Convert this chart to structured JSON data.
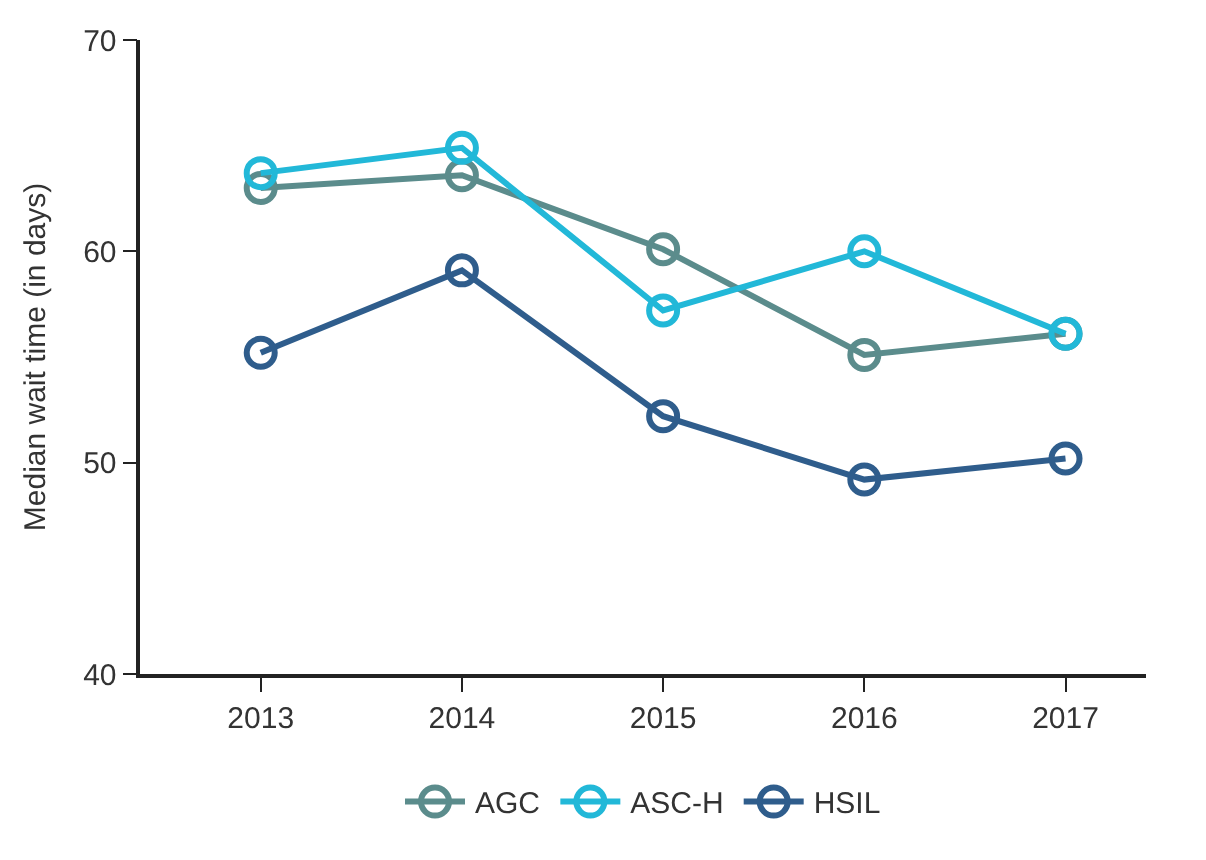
{
  "chart_data": {
    "type": "line",
    "ylabel": "Median wait time (in days)",
    "categories": [
      "2013",
      "2014",
      "2015",
      "2016",
      "2017"
    ],
    "series": [
      {
        "name": "AGC",
        "color": "#5b8c8c",
        "values": [
          63.0,
          63.6,
          60.1,
          55.1,
          56.1
        ]
      },
      {
        "name": "ASC-H",
        "color": "#22b8d8",
        "values": [
          63.7,
          64.9,
          57.2,
          60.0,
          56.1
        ]
      },
      {
        "name": "HSIL",
        "color": "#2f5d8c",
        "values": [
          55.2,
          59.1,
          52.2,
          49.2,
          50.2
        ]
      }
    ],
    "ylim": [
      40,
      70
    ],
    "yticks": [
      40,
      50,
      60,
      70
    ],
    "legend": "bottom",
    "marker": "circle",
    "line_style": "solid"
  }
}
